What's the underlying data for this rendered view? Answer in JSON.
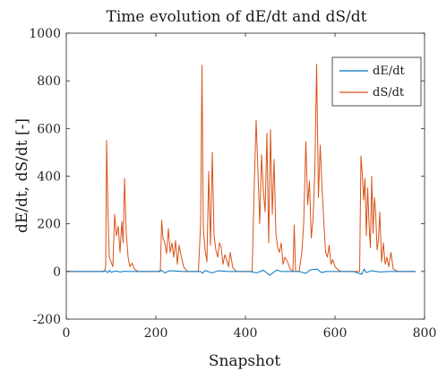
{
  "chart_data": {
    "type": "line",
    "title": "Time evolution of dE/dt and dS/dt",
    "xlabel": "Snapshot",
    "ylabel": "dE/dt, dS/dt  [-]",
    "xlim": [
      0,
      800
    ],
    "ylim": [
      -200,
      1000
    ],
    "xticks": [
      0,
      200,
      400,
      600,
      800
    ],
    "yticks": [
      -200,
      0,
      200,
      400,
      600,
      800,
      1000
    ],
    "xtick_labels": [
      "0",
      "200",
      "400",
      "600",
      "800"
    ],
    "ytick_labels": [
      "-200",
      "0",
      "200",
      "400",
      "600",
      "800",
      "1000"
    ],
    "grid": false,
    "legend_position": "top-right",
    "series": [
      {
        "name": "dE/dt",
        "color": "#0072BD",
        "x": [
          0,
          80,
          88,
          92,
          96,
          100,
          110,
          120,
          130,
          140,
          150,
          205,
          212,
          220,
          230,
          240,
          260,
          300,
          304,
          310,
          325,
          340,
          360,
          410,
          425,
          440,
          450,
          455,
          470,
          480,
          520,
          535,
          545,
          560,
          570,
          580,
          640,
          660,
          665,
          670,
          680,
          700,
          720,
          780
        ],
        "y": [
          0,
          0,
          3,
          -5,
          4,
          -3,
          2,
          -2,
          1,
          0,
          0,
          0,
          5,
          -6,
          3,
          2,
          0,
          0,
          -8,
          4,
          -6,
          3,
          0,
          0,
          -6,
          5,
          -10,
          -15,
          6,
          0,
          0,
          -8,
          7,
          10,
          -5,
          0,
          0,
          -12,
          10,
          -5,
          3,
          -2,
          0,
          0
        ]
      },
      {
        "name": "dS/dt",
        "color": "#D95319",
        "x": [
          0,
          85,
          88,
          90,
          93,
          96,
          100,
          104,
          108,
          112,
          116,
          120,
          124,
          127,
          130,
          134,
          138,
          142,
          147,
          152,
          160,
          210,
          213,
          216,
          220,
          224,
          228,
          232,
          236,
          240,
          244,
          248,
          252,
          256,
          262,
          270,
          295,
          300,
          303,
          306,
          310,
          314,
          318,
          322,
          326,
          330,
          334,
          338,
          342,
          346,
          350,
          354,
          358,
          362,
          366,
          372,
          380,
          415,
          420,
          424,
          428,
          432,
          436,
          440,
          444,
          448,
          452,
          456,
          460,
          464,
          468,
          472,
          476,
          480,
          484,
          488,
          494,
          500,
          506,
          509,
          512,
          520,
          526,
          530,
          535,
          539,
          543,
          547,
          551,
          555,
          559,
          563,
          567,
          571,
          575,
          579,
          583,
          587,
          591,
          595,
          600,
          605,
          612,
          620,
          650,
          655,
          658,
          661,
          664,
          667,
          670,
          673,
          676,
          679,
          682,
          685,
          688,
          691,
          694,
          697,
          700,
          704,
          708,
          712,
          716,
          720,
          725,
          730,
          740,
          780
        ],
        "y": [
          0,
          0,
          20,
          550,
          250,
          60,
          40,
          20,
          240,
          150,
          190,
          80,
          210,
          120,
          390,
          160,
          60,
          20,
          35,
          10,
          0,
          0,
          215,
          140,
          120,
          75,
          180,
          80,
          120,
          60,
          130,
          30,
          110,
          70,
          20,
          0,
          0,
          200,
          865,
          180,
          90,
          40,
          420,
          110,
          500,
          150,
          90,
          60,
          120,
          100,
          30,
          70,
          50,
          20,
          80,
          15,
          0,
          0,
          380,
          635,
          420,
          200,
          490,
          340,
          250,
          580,
          120,
          595,
          240,
          470,
          160,
          100,
          80,
          120,
          30,
          60,
          40,
          10,
          0,
          195,
          0,
          0,
          80,
          200,
          545,
          280,
          380,
          140,
          220,
          420,
          870,
          310,
          530,
          350,
          210,
          80,
          60,
          110,
          30,
          50,
          20,
          10,
          0,
          0,
          0,
          0,
          485,
          410,
          300,
          390,
          150,
          350,
          200,
          100,
          400,
          160,
          310,
          240,
          90,
          130,
          250,
          40,
          120,
          30,
          60,
          20,
          80,
          10,
          0,
          0
        ]
      }
    ]
  }
}
